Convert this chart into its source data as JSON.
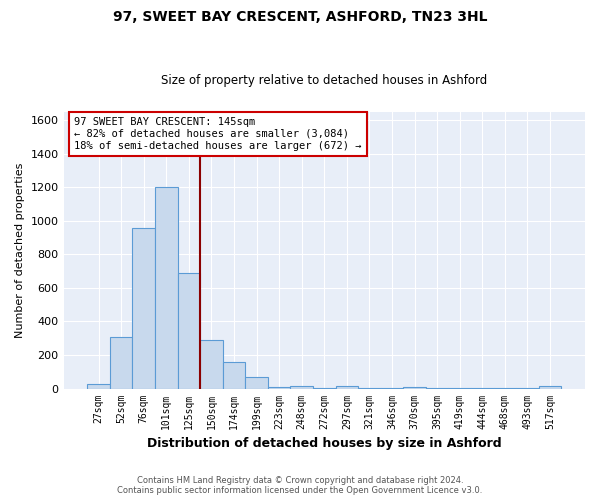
{
  "title1": "97, SWEET BAY CRESCENT, ASHFORD, TN23 3HL",
  "title2": "Size of property relative to detached houses in Ashford",
  "xlabel": "Distribution of detached houses by size in Ashford",
  "ylabel": "Number of detached properties",
  "categories": [
    "27sqm",
    "52sqm",
    "76sqm",
    "101sqm",
    "125sqm",
    "150sqm",
    "174sqm",
    "199sqm",
    "223sqm",
    "248sqm",
    "272sqm",
    "297sqm",
    "321sqm",
    "346sqm",
    "370sqm",
    "395sqm",
    "419sqm",
    "444sqm",
    "468sqm",
    "493sqm",
    "517sqm"
  ],
  "values": [
    30,
    310,
    960,
    1200,
    690,
    290,
    160,
    70,
    10,
    15,
    5,
    15,
    5,
    5,
    10,
    5,
    5,
    5,
    5,
    5,
    15
  ],
  "bar_color": "#c8d9ed",
  "bar_edge_color": "#5b9bd5",
  "vline_x": 4.5,
  "vline_color": "#8b0000",
  "annotation_line1": "97 SWEET BAY CRESCENT: 145sqm",
  "annotation_line2": "← 82% of detached houses are smaller (3,084)",
  "annotation_line3": "18% of semi-detached houses are larger (672) →",
  "annotation_box_color": "#ffffff",
  "annotation_box_edge": "#cc0000",
  "ylim": [
    0,
    1650
  ],
  "yticks": [
    0,
    200,
    400,
    600,
    800,
    1000,
    1200,
    1400,
    1600
  ],
  "fig_background": "#ffffff",
  "plot_background": "#e8eef8",
  "grid_color": "#ffffff",
  "footer1": "Contains HM Land Registry data © Crown copyright and database right 2024.",
  "footer2": "Contains public sector information licensed under the Open Government Licence v3.0."
}
